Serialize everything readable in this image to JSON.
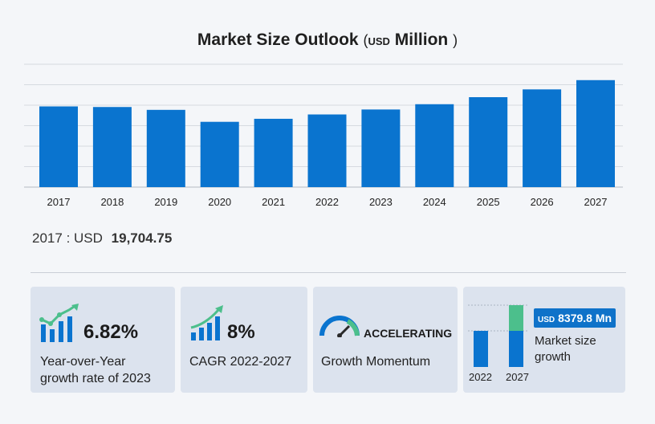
{
  "header": {
    "title": "Market Size Outlook",
    "paren_open": "(",
    "currency": "USD",
    "unit": "Million",
    "paren_close": ")"
  },
  "chart_data": {
    "type": "bar",
    "title": "Market Size Outlook (USD Million)",
    "categories": [
      "2017",
      "2018",
      "2019",
      "2020",
      "2021",
      "2022",
      "2023",
      "2024",
      "2025",
      "2026",
      "2027"
    ],
    "values": [
      19704.75,
      19560,
      18860,
      15940,
      16680,
      17740,
      18950,
      20240,
      21960,
      23860,
      26120
    ],
    "ylim": [
      0,
      30000
    ],
    "grid": true,
    "color": "#0a74cf"
  },
  "base_year": {
    "year": "2017",
    "separator": ":",
    "currency": "USD",
    "value": "19,704.75"
  },
  "cards": {
    "yoy": {
      "value": "6.82%",
      "label_line1": "Year-over-Year",
      "label_line2": "growth rate of 2023",
      "icon": "growth-bars-icon"
    },
    "cagr": {
      "value": "8%",
      "label": "CAGR 2022-2027",
      "icon": "rising-bars-icon"
    },
    "momentum": {
      "value": "ACCELERATING",
      "label": "Growth Momentum",
      "icon": "speedometer-icon"
    },
    "market": {
      "currency": "USD",
      "value": "8379.8 Mn",
      "label_line1": "Market size",
      "label_line2": "growth",
      "year_start": "2022",
      "year_end": "2027"
    }
  },
  "colors": {
    "bar": "#0a74cf",
    "accent_green": "#4cbf8c",
    "card_bg": "#dce3ee"
  }
}
